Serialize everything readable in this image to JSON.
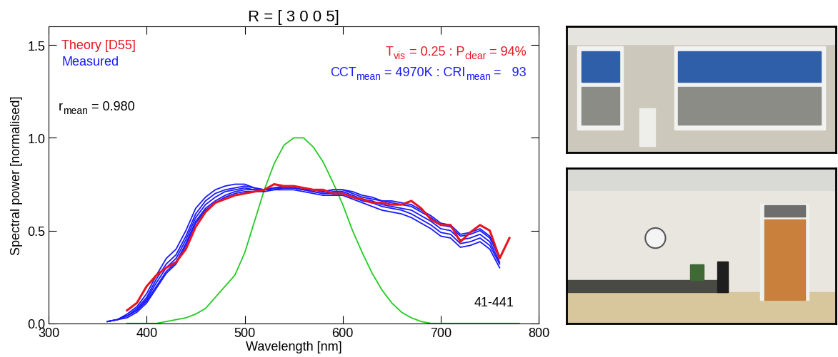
{
  "chart_data": {
    "type": "line",
    "title": "R = [ 3 0 0 5]",
    "x_label": "Wavelength [nm]",
    "y_label": "Spectral power [normalised]",
    "xlim": [
      300,
      800
    ],
    "xticks": [
      300,
      400,
      500,
      600,
      700,
      800
    ],
    "ylim": [
      0,
      1.6
    ],
    "yticks": [
      0.0,
      0.5,
      1.0,
      1.5
    ],
    "legend": "upper left",
    "series": [
      {
        "color": "#22cc22",
        "x": [
          380,
          390,
          400,
          410,
          420,
          430,
          440,
          450,
          460,
          470,
          480,
          490,
          500,
          510,
          520,
          530,
          540,
          550,
          560,
          570,
          580,
          590,
          600,
          610,
          620,
          630,
          640,
          650,
          660,
          670,
          680,
          690,
          700,
          710,
          720,
          730,
          740,
          750,
          760,
          770,
          780
        ],
        "values": [
          0.0,
          0.0,
          0.0,
          0.0,
          0.01,
          0.02,
          0.03,
          0.05,
          0.08,
          0.14,
          0.2,
          0.26,
          0.38,
          0.55,
          0.72,
          0.86,
          0.96,
          1.0,
          1.0,
          0.95,
          0.87,
          0.76,
          0.64,
          0.5,
          0.38,
          0.27,
          0.18,
          0.11,
          0.06,
          0.03,
          0.01,
          0.0,
          0.0,
          0.0,
          0.0,
          0.0,
          0.0,
          0.0,
          0.0,
          0.0,
          0.0
        ]
      },
      {
        "name": "Measured",
        "color": "#1a1aff",
        "x": [
          360,
          370,
          380,
          390,
          400,
          410,
          420,
          430,
          440,
          450,
          460,
          470,
          480,
          490,
          500,
          510,
          520,
          530,
          540,
          550,
          560,
          570,
          580,
          590,
          600,
          610,
          620,
          630,
          640,
          650,
          660,
          670,
          680,
          690,
          700,
          710,
          720,
          730,
          740,
          750,
          760
        ],
        "values": [
          [
            0.01,
            0.02,
            0.05,
            0.09,
            0.16,
            0.26,
            0.35,
            0.4,
            0.5,
            0.62,
            0.68,
            0.72,
            0.74,
            0.75,
            0.75,
            0.73,
            0.72,
            0.72,
            0.72,
            0.72,
            0.71,
            0.7,
            0.69,
            0.69,
            0.69,
            0.67,
            0.65,
            0.63,
            0.61,
            0.6,
            0.59,
            0.57,
            0.54,
            0.51,
            0.47,
            0.46,
            0.41,
            0.42,
            0.44,
            0.4,
            0.3
          ],
          [
            0.01,
            0.02,
            0.04,
            0.08,
            0.14,
            0.24,
            0.32,
            0.37,
            0.47,
            0.59,
            0.66,
            0.7,
            0.72,
            0.73,
            0.74,
            0.73,
            0.72,
            0.73,
            0.73,
            0.73,
            0.72,
            0.71,
            0.7,
            0.7,
            0.7,
            0.68,
            0.66,
            0.65,
            0.63,
            0.62,
            0.61,
            0.59,
            0.56,
            0.53,
            0.49,
            0.48,
            0.43,
            0.44,
            0.46,
            0.42,
            0.32
          ],
          [
            0.01,
            0.02,
            0.04,
            0.07,
            0.13,
            0.22,
            0.3,
            0.35,
            0.45,
            0.57,
            0.64,
            0.68,
            0.71,
            0.72,
            0.73,
            0.72,
            0.72,
            0.73,
            0.73,
            0.73,
            0.72,
            0.71,
            0.7,
            0.71,
            0.71,
            0.69,
            0.67,
            0.66,
            0.64,
            0.63,
            0.62,
            0.61,
            0.58,
            0.55,
            0.51,
            0.5,
            0.45,
            0.46,
            0.48,
            0.44,
            0.33
          ],
          [
            0.01,
            0.02,
            0.04,
            0.07,
            0.12,
            0.2,
            0.28,
            0.33,
            0.43,
            0.55,
            0.62,
            0.66,
            0.69,
            0.71,
            0.72,
            0.72,
            0.72,
            0.73,
            0.74,
            0.74,
            0.73,
            0.72,
            0.71,
            0.72,
            0.72,
            0.7,
            0.68,
            0.67,
            0.66,
            0.65,
            0.64,
            0.63,
            0.6,
            0.57,
            0.53,
            0.52,
            0.47,
            0.48,
            0.5,
            0.46,
            0.35
          ],
          [
            0.01,
            0.02,
            0.03,
            0.06,
            0.11,
            0.19,
            0.27,
            0.32,
            0.42,
            0.54,
            0.61,
            0.65,
            0.68,
            0.7,
            0.71,
            0.71,
            0.71,
            0.72,
            0.73,
            0.73,
            0.72,
            0.72,
            0.71,
            0.72,
            0.72,
            0.71,
            0.69,
            0.68,
            0.66,
            0.66,
            0.65,
            0.64,
            0.61,
            0.58,
            0.54,
            0.53,
            0.48,
            0.49,
            0.51,
            0.47,
            0.36
          ]
        ]
      },
      {
        "name": "Theory [D55]",
        "color": "#e8141e",
        "x": [
          380,
          390,
          400,
          410,
          420,
          430,
          440,
          450,
          460,
          470,
          480,
          490,
          500,
          510,
          520,
          530,
          540,
          550,
          560,
          570,
          580,
          590,
          600,
          610,
          620,
          630,
          640,
          650,
          660,
          670,
          680,
          690,
          700,
          710,
          720,
          730,
          740,
          750,
          760,
          770
        ],
        "values": [
          0.07,
          0.11,
          0.2,
          0.26,
          0.3,
          0.33,
          0.4,
          0.52,
          0.6,
          0.65,
          0.67,
          0.69,
          0.7,
          0.71,
          0.72,
          0.75,
          0.74,
          0.74,
          0.73,
          0.72,
          0.72,
          0.7,
          0.7,
          0.68,
          0.67,
          0.65,
          0.65,
          0.64,
          0.64,
          0.66,
          0.62,
          0.56,
          0.53,
          0.53,
          0.44,
          0.49,
          0.53,
          0.5,
          0.35,
          0.46
        ]
      }
    ],
    "annotations": [
      {
        "parts": [
          {
            "text": "r"
          },
          {
            "sub": "mean"
          },
          {
            "text": " = 0.980"
          }
        ],
        "color": "#000000"
      },
      {
        "parts": [
          {
            "text": "T"
          },
          {
            "sub": "vis"
          },
          {
            "text": " = 0.25 : P"
          },
          {
            "sub": "clear"
          },
          {
            "text": " = 94%"
          }
        ],
        "color": "#e8141e"
      },
      {
        "parts": [
          {
            "text": "CCT"
          },
          {
            "sub": "mean"
          },
          {
            "text": " = 4970K : CRI"
          },
          {
            "sub": "mean"
          },
          {
            "text": " =   93"
          }
        ],
        "color": "#1a1aff"
      },
      {
        "parts": [
          {
            "text": "41-441"
          }
        ],
        "color": "#000000"
      }
    ]
  }
}
